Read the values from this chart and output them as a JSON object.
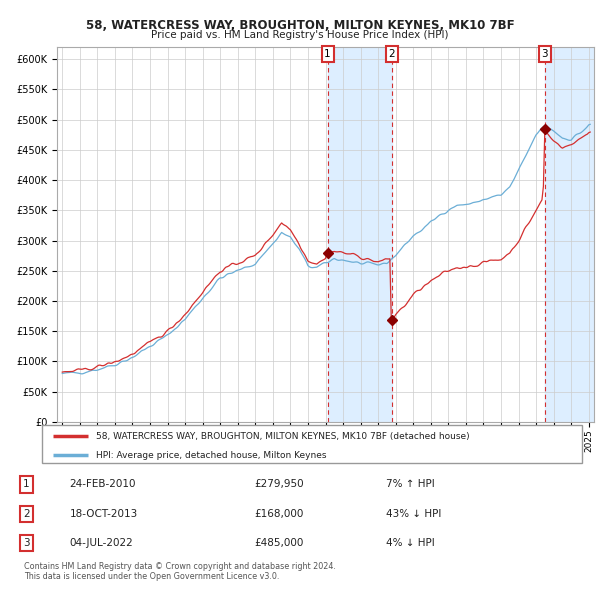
{
  "title1": "58, WATERCRESS WAY, BROUGHTON, MILTON KEYNES, MK10 7BF",
  "title2": "Price paid vs. HM Land Registry's House Price Index (HPI)",
  "legend_line1": "58, WATERCRESS WAY, BROUGHTON, MILTON KEYNES, MK10 7BF (detached house)",
  "legend_line2": "HPI: Average price, detached house, Milton Keynes",
  "footer1": "Contains HM Land Registry data © Crown copyright and database right 2024.",
  "footer2": "This data is licensed under the Open Government Licence v3.0.",
  "transactions": [
    {
      "num": 1,
      "date": "24-FEB-2010",
      "price": 279950,
      "pct": "7%",
      "dir": "↑",
      "x": 2010.12
    },
    {
      "num": 2,
      "date": "18-OCT-2013",
      "price": 168000,
      "pct": "43%",
      "dir": "↓",
      "x": 2013.79
    },
    {
      "num": 3,
      "date": "04-JUL-2022",
      "price": 485000,
      "pct": "4%",
      "dir": "↓",
      "x": 2022.5
    }
  ],
  "ylim": [
    0,
    620000
  ],
  "yticks": [
    0,
    50000,
    100000,
    150000,
    200000,
    250000,
    300000,
    350000,
    400000,
    450000,
    500000,
    550000,
    600000
  ],
  "hpi_color": "#6baed6",
  "price_color": "#d32f2f",
  "shade_color": "#ddeeff",
  "vline_color": "#d32f2f",
  "marker_color": "#8b0000",
  "bg_color": "#ffffff",
  "grid_color": "#cccccc",
  "xlim_left": 1994.7,
  "xlim_right": 2025.3
}
